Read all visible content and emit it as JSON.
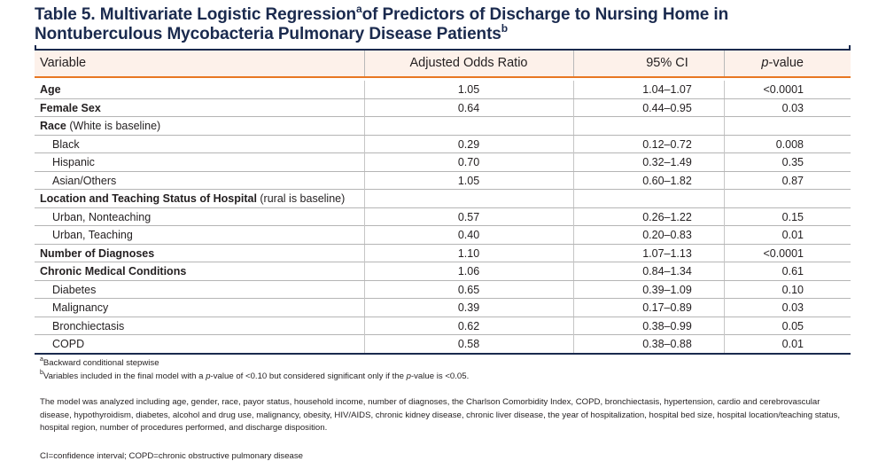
{
  "title": {
    "line1_main": "Table 5. Multivariate Logistic Regression",
    "line1_sup": "a",
    "line1_rest": "of Predictors of Discharge to Nursing Home in",
    "line2_main": "Nontuberculous Mycobacteria Pulmonary Disease Patients",
    "line2_sup": "b"
  },
  "columns": {
    "variable": "Variable",
    "aor": "Adjusted Odds Ratio",
    "ci": "95% CI",
    "p_italic": "p",
    "p_rest": "-value"
  },
  "rows": [
    {
      "label": "Age",
      "suffix": "",
      "bold": true,
      "indent": false,
      "aor": "1.05",
      "ci": "1.04–1.07",
      "p": "<0.0001"
    },
    {
      "label": "Female Sex",
      "suffix": "",
      "bold": true,
      "indent": false,
      "aor": "0.64",
      "ci": "0.44–0.95",
      "p": "0.03"
    },
    {
      "label": "Race",
      "suffix": " (White is baseline)",
      "bold": true,
      "indent": false,
      "aor": "",
      "ci": "",
      "p": ""
    },
    {
      "label": "Black",
      "suffix": "",
      "bold": false,
      "indent": true,
      "aor": "0.29",
      "ci": "0.12–0.72",
      "p": "0.008"
    },
    {
      "label": "Hispanic",
      "suffix": "",
      "bold": false,
      "indent": true,
      "aor": "0.70",
      "ci": "0.32–1.49",
      "p": "0.35"
    },
    {
      "label": "Asian/Others",
      "suffix": "",
      "bold": false,
      "indent": true,
      "aor": "1.05",
      "ci": "0.60–1.82",
      "p": "0.87"
    },
    {
      "label": "Location and Teaching Status of Hospital",
      "suffix": " (rural is baseline)",
      "bold": true,
      "indent": false,
      "aor": "",
      "ci": "",
      "p": ""
    },
    {
      "label": "Urban, Nonteaching",
      "suffix": "",
      "bold": false,
      "indent": true,
      "aor": "0.57",
      "ci": "0.26–1.22",
      "p": "0.15"
    },
    {
      "label": "Urban, Teaching",
      "suffix": "",
      "bold": false,
      "indent": true,
      "aor": "0.40",
      "ci": "0.20–0.83",
      "p": "0.01"
    },
    {
      "label": "Number of Diagnoses",
      "suffix": "",
      "bold": true,
      "indent": false,
      "aor": "1.10",
      "ci": "1.07–1.13",
      "p": "<0.0001"
    },
    {
      "label": "Chronic Medical Conditions",
      "suffix": "",
      "bold": true,
      "indent": false,
      "aor": "1.06",
      "ci": "0.84–1.34",
      "p": "0.61"
    },
    {
      "label": "Diabetes",
      "suffix": "",
      "bold": false,
      "indent": true,
      "aor": "0.65",
      "ci": "0.39–1.09",
      "p": "0.10"
    },
    {
      "label": "Malignancy",
      "suffix": "",
      "bold": false,
      "indent": true,
      "aor": "0.39",
      "ci": "0.17–0.89",
      "p": "0.03"
    },
    {
      "label": "Bronchiectasis",
      "suffix": "",
      "bold": false,
      "indent": true,
      "aor": "0.62",
      "ci": "0.38–0.99",
      "p": "0.05"
    },
    {
      "label": "COPD",
      "suffix": "",
      "bold": false,
      "indent": true,
      "aor": "0.58",
      "ci": "0.38–0.88",
      "p": "0.01"
    }
  ],
  "footnotes": {
    "a_sup": "a",
    "a_text": "Backward conditional stepwise",
    "b_sup": "b",
    "b_text_1": "Variables included in the final model with a ",
    "b_italic_1": "p",
    "b_text_2": "-value of <0.10 but considered significant only if the ",
    "b_italic_2": "p",
    "b_text_3": "-value is <0.05.",
    "model_note": "The model was analyzed including age, gender, race, payor status, household income, number of diagnoses, the Charlson Comorbidity Index, COPD, bronchiectasis, hypertension, cardio and cerebrovascular disease, hypothyroidism, diabetes, alcohol and drug use, malignancy, obesity, HIV/AIDS, chronic kidney disease, chronic liver disease, the year of hospitalization, hospital bed size, hospital location/teaching status, hospital region, number of procedures performed, and discharge disposition.",
    "abbreviations": "CI=confidence interval; COPD=chronic obstructive pulmonary disease"
  },
  "colors": {
    "title": "#1a2a4e",
    "header_bg": "#fdf1ea",
    "accent_rule": "#e87722"
  }
}
